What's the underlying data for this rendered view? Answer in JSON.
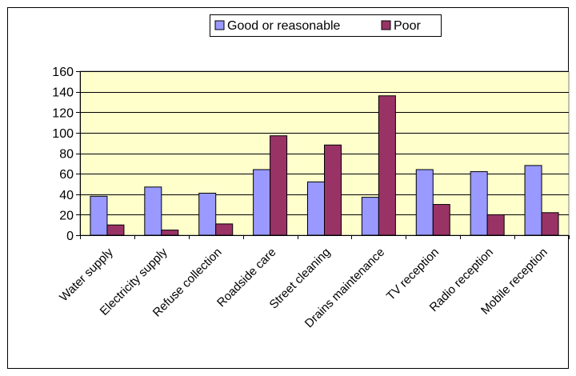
{
  "chart_data": {
    "type": "bar",
    "categories": [
      "Water supply",
      "Electricity supply",
      "Refuse collection",
      "Roadside care",
      "Street cleaning",
      "Drains maintenance",
      "TV reception",
      "Radio reception",
      "Mobile reception"
    ],
    "series": [
      {
        "name": "Good or reasonable",
        "color": "#9999ff",
        "values": [
          38,
          47,
          41,
          64,
          52,
          37,
          64,
          62,
          68
        ]
      },
      {
        "name": "Poor",
        "color": "#993366",
        "values": [
          10,
          5,
          11,
          97,
          88,
          136,
          30,
          20,
          22
        ]
      }
    ],
    "ylim": [
      0,
      160
    ],
    "yticks": [
      0,
      20,
      40,
      60,
      80,
      100,
      120,
      140,
      160
    ],
    "grid": true,
    "legend_position": "top",
    "plot_background": "#ffffcc"
  }
}
